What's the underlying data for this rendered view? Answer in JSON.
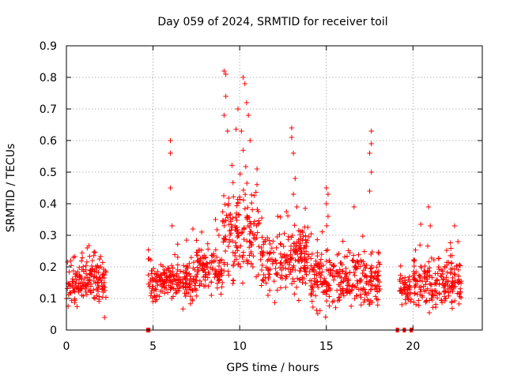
{
  "chart_data": {
    "type": "scatter",
    "title": "Day 059 of 2024, SRMTID for receiver toil",
    "xlabel": "GPS time / hours",
    "ylabel": "SRMTID / TECUs",
    "xlim": [
      0,
      24
    ],
    "ylim": [
      0,
      0.9
    ],
    "x_ticks": [
      0,
      5,
      10,
      15,
      20
    ],
    "y_ticks": [
      0,
      0.1,
      0.2,
      0.3,
      0.4,
      0.5,
      0.6,
      0.7,
      0.8,
      0.9
    ],
    "x_tick_labels": [
      "0",
      "5",
      "10",
      "15",
      "20"
    ],
    "y_tick_labels": [
      "0",
      "0.1",
      "0.2",
      "0.3",
      "0.4",
      "0.5",
      "0.6",
      "0.7",
      "0.8",
      "0.9"
    ],
    "grid": true,
    "marker": "plus",
    "color": "#ff0000",
    "series": [
      {
        "name": "SRMTID",
        "segments": [
          {
            "x_start": 0.0,
            "x_end": 2.3,
            "mean": 0.15,
            "spread": 0.04,
            "spikes": [
              [
                0.4,
                0.23
              ],
              [
                1.2,
                0.26
              ],
              [
                1.5,
                0.22
              ],
              [
                2.2,
                0.04
              ]
            ]
          },
          {
            "x_start": 4.7,
            "x_end": 7.5,
            "mean": 0.15,
            "spread": 0.04,
            "spikes": [
              [
                6.0,
                0.6
              ],
              [
                6.0,
                0.56
              ],
              [
                6.0,
                0.45
              ],
              [
                6.1,
                0.33
              ],
              [
                7.3,
                0.32
              ]
            ]
          },
          {
            "x_start": 7.5,
            "x_end": 9.0,
            "mean": 0.19,
            "spread": 0.04,
            "spikes": [
              [
                8.6,
                0.35
              ],
              [
                8.8,
                0.3
              ]
            ]
          },
          {
            "x_start": 9.0,
            "x_end": 11.2,
            "mean": 0.3,
            "spread": 0.1,
            "spikes": [
              [
                9.1,
                0.82
              ],
              [
                9.2,
                0.81
              ],
              [
                9.2,
                0.74
              ],
              [
                9.1,
                0.68
              ],
              [
                9.3,
                0.63
              ],
              [
                9.9,
                0.7
              ],
              [
                10.2,
                0.8
              ],
              [
                10.3,
                0.78
              ],
              [
                10.4,
                0.72
              ],
              [
                10.5,
                0.68
              ],
              [
                10.1,
                0.63
              ],
              [
                10.6,
                0.6
              ],
              [
                11.0,
                0.51
              ]
            ]
          },
          {
            "x_start": 11.2,
            "x_end": 14.0,
            "mean": 0.22,
            "spread": 0.06,
            "spikes": [
              [
                13.0,
                0.64
              ],
              [
                13.0,
                0.61
              ],
              [
                13.1,
                0.56
              ],
              [
                13.2,
                0.48
              ],
              [
                13.1,
                0.43
              ],
              [
                13.3,
                0.39
              ],
              [
                12.2,
                0.36
              ]
            ]
          },
          {
            "x_start": 14.0,
            "x_end": 16.0,
            "mean": 0.16,
            "spread": 0.05,
            "spikes": [
              [
                15.0,
                0.45
              ],
              [
                15.1,
                0.43
              ],
              [
                15.0,
                0.4
              ],
              [
                15.1,
                0.36
              ]
            ]
          },
          {
            "x_start": 16.0,
            "x_end": 18.1,
            "mean": 0.16,
            "spread": 0.05,
            "spikes": [
              [
                17.6,
                0.63
              ],
              [
                17.6,
                0.59
              ],
              [
                17.5,
                0.56
              ],
              [
                17.6,
                0.5
              ],
              [
                17.5,
                0.44
              ],
              [
                16.6,
                0.39
              ]
            ]
          },
          {
            "x_start": 19.2,
            "x_end": 19.9,
            "mean": 0.13,
            "spread": 0.03,
            "spikes": []
          },
          {
            "x_start": 20.0,
            "x_end": 22.8,
            "mean": 0.15,
            "spread": 0.05,
            "spikes": [
              [
                20.9,
                0.39
              ],
              [
                21.0,
                0.33
              ],
              [
                22.4,
                0.33
              ],
              [
                22.6,
                0.28
              ]
            ]
          }
        ],
        "zero_points": [
          [
            4.7,
            0.0
          ],
          [
            4.75,
            0.0
          ],
          [
            19.1,
            0.0
          ],
          [
            19.5,
            0.0
          ],
          [
            19.9,
            0.0
          ]
        ]
      }
    ]
  }
}
